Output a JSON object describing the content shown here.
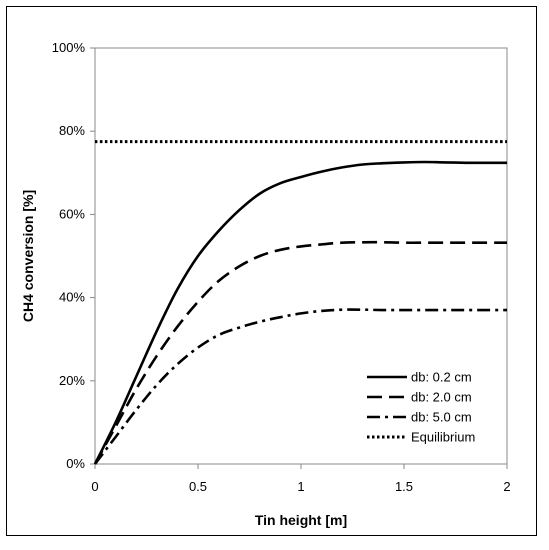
{
  "chart_data": {
    "type": "line",
    "title": "",
    "xlabel": "Tin height [m]",
    "ylabel": "CH4 conversion [%]",
    "xlim": [
      0,
      2
    ],
    "ylim": [
      0,
      100
    ],
    "x_ticks": [
      "0",
      "0.5",
      "1",
      "1.5",
      "2"
    ],
    "y_ticks": [
      "0%",
      "20%",
      "40%",
      "60%",
      "80%",
      "100%"
    ],
    "grid": false,
    "legend_position": "bottom-right",
    "series": [
      {
        "name": "db: 0.2 cm",
        "style": "solid",
        "x": [
          0,
          0.1,
          0.2,
          0.3,
          0.4,
          0.5,
          0.6,
          0.7,
          0.8,
          0.9,
          1.0,
          1.1,
          1.2,
          1.3,
          1.4,
          1.5,
          1.6,
          1.7,
          1.8,
          1.9,
          2.0
        ],
        "y": [
          0,
          10,
          21,
          32,
          42,
          50,
          56,
          61,
          65,
          67.5,
          69,
          70.3,
          71.3,
          72,
          72.3,
          72.5,
          72.6,
          72.5,
          72.4,
          72.4,
          72.4
        ]
      },
      {
        "name": "db: 2.0 cm",
        "style": "dashed",
        "x": [
          0,
          0.1,
          0.2,
          0.3,
          0.4,
          0.5,
          0.6,
          0.7,
          0.8,
          0.9,
          1.0,
          1.1,
          1.2,
          1.3,
          1.4,
          1.5,
          1.6,
          1.7,
          1.8,
          1.9,
          2.0
        ],
        "y": [
          0,
          9,
          18,
          26,
          33,
          39,
          44,
          47.5,
          50,
          51.5,
          52.3,
          52.8,
          53.2,
          53.3,
          53.3,
          53.2,
          53.2,
          53.2,
          53.2,
          53.2,
          53.2
        ]
      },
      {
        "name": "db: 5.0 cm",
        "style": "dash-dot",
        "x": [
          0,
          0.1,
          0.2,
          0.3,
          0.4,
          0.5,
          0.6,
          0.7,
          0.8,
          0.9,
          1.0,
          1.1,
          1.2,
          1.3,
          1.4,
          1.5,
          1.6,
          1.7,
          1.8,
          1.9,
          2.0
        ],
        "y": [
          0,
          6.5,
          13,
          19,
          24,
          28,
          31,
          32.8,
          34.2,
          35.3,
          36.2,
          36.8,
          37.1,
          37.1,
          37.0,
          37.0,
          37.0,
          37.0,
          37.0,
          37.0,
          37.0
        ]
      },
      {
        "name": "Equilibrium",
        "style": "dotted",
        "x": [
          0,
          2
        ],
        "y": [
          77.5,
          77.5
        ]
      }
    ]
  },
  "colors": {
    "line": "#000000",
    "background": "#ffffff"
  }
}
